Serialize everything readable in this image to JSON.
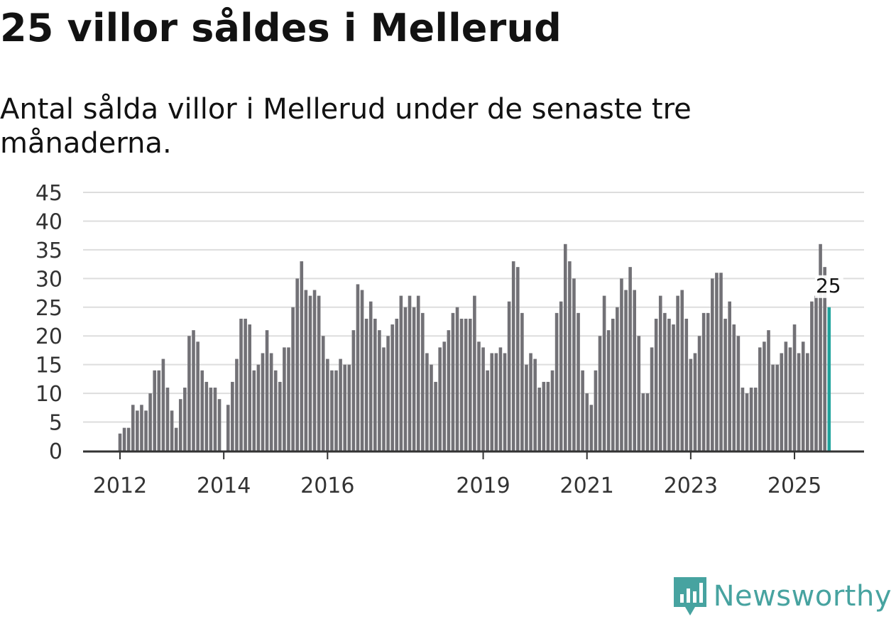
{
  "title": "25 villor såldes i Mellerud",
  "subtitle": "Antal sålda villor i Mellerud under de senaste tre månaderna.",
  "brand": {
    "name": "Newsworthy",
    "color": "#47a3a0",
    "icon": "newsworthy-logo-icon"
  },
  "colors": {
    "bar": "#727176",
    "highlight": "#1fa39c",
    "grid": "#dddddd",
    "axis": "#333333"
  },
  "chart_data": {
    "type": "bar",
    "title": "25 villor såldes i Mellerud",
    "xlabel": "",
    "ylabel": "",
    "ylim": [
      0,
      45
    ],
    "y_ticks": [
      "0",
      "5",
      "10",
      "15",
      "20",
      "25",
      "30",
      "35",
      "40",
      "45"
    ],
    "x_ticks": [
      {
        "label": "2012",
        "index": 0
      },
      {
        "label": "2014",
        "index": 24
      },
      {
        "label": "2016",
        "index": 48
      },
      {
        "label": "2019",
        "index": 84
      },
      {
        "label": "2021",
        "index": 108
      },
      {
        "label": "2023",
        "index": 132
      },
      {
        "label": "2025",
        "index": 156
      }
    ],
    "values": [
      3,
      4,
      4,
      8,
      7,
      8,
      7,
      10,
      14,
      14,
      16,
      11,
      7,
      4,
      9,
      11,
      20,
      21,
      19,
      14,
      12,
      11,
      11,
      9,
      0,
      8,
      12,
      16,
      23,
      23,
      22,
      14,
      15,
      17,
      21,
      17,
      14,
      12,
      18,
      18,
      25,
      30,
      33,
      28,
      27,
      28,
      27,
      20,
      16,
      14,
      14,
      16,
      15,
      15,
      21,
      29,
      28,
      23,
      26,
      23,
      21,
      18,
      20,
      22,
      23,
      27,
      25,
      27,
      25,
      27,
      24,
      17,
      15,
      12,
      18,
      19,
      21,
      24,
      25,
      23,
      23,
      23,
      27,
      19,
      18,
      14,
      17,
      17,
      18,
      17,
      26,
      33,
      32,
      24,
      15,
      17,
      16,
      11,
      12,
      12,
      14,
      24,
      26,
      36,
      33,
      30,
      24,
      14,
      10,
      8,
      14,
      20,
      27,
      21,
      23,
      25,
      30,
      28,
      32,
      28,
      20,
      10,
      10,
      18,
      23,
      27,
      24,
      23,
      22,
      27,
      28,
      23,
      16,
      17,
      20,
      24,
      24,
      30,
      31,
      31,
      23,
      26,
      22,
      20,
      11,
      10,
      11,
      11,
      18,
      19,
      21,
      15,
      15,
      17,
      19,
      18,
      22,
      17,
      19,
      17,
      26,
      27,
      36,
      32,
      25
    ],
    "highlight_index": 164,
    "annotation": {
      "label": "25",
      "value": 25
    }
  }
}
